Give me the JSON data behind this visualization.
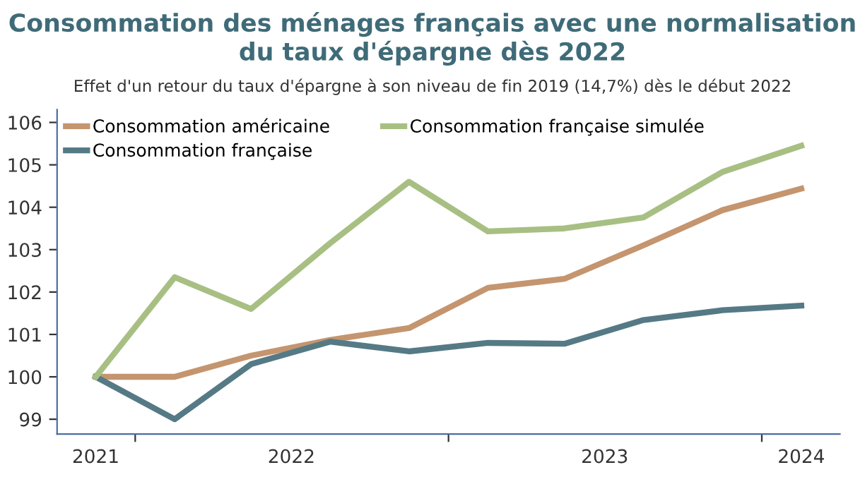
{
  "chart_data": {
    "type": "line",
    "title": "Consommation des ménages français avec une normalisation du taux d'épargne dès 2022",
    "subtitle": "Effet d'un retour du taux d'épargne à son niveau de fin 2019 (14,7%) dès le début 2022",
    "x": [
      "2021-11-15",
      "2022-02-15",
      "2022-05-15",
      "2022-08-15",
      "2022-11-15",
      "2023-02-15",
      "2023-05-15",
      "2023-08-15",
      "2023-11-15",
      "2024-02-15"
    ],
    "series": [
      {
        "name": "Consommation américaine",
        "color": "#c4956e",
        "values": [
          100,
          100,
          100.5,
          100.87,
          101.15,
          102.1,
          102.31,
          103.1,
          103.93,
          104.44
        ]
      },
      {
        "name": "Consommation française",
        "color": "#557a85",
        "values": [
          100,
          99,
          100.3,
          100.83,
          100.6,
          100.8,
          100.78,
          101.34,
          101.57,
          101.68
        ]
      },
      {
        "name": "Consommation française simulée",
        "color": "#a8bf83",
        "values": [
          100,
          102.35,
          101.6,
          103.15,
          104.6,
          103.43,
          103.5,
          103.76,
          104.83,
          105.45
        ]
      }
    ],
    "xlim": [
      "2021-10-01",
      "2024-03-31"
    ],
    "xticks": [
      {
        "value": "2021-11-15",
        "label": "2021"
      },
      {
        "value": "2021-12-31",
        "label": null
      },
      {
        "value": "2022-07-01",
        "label": "2022"
      },
      {
        "value": "2022-12-31",
        "label": null
      },
      {
        "value": "2023-07-01",
        "label": "2023"
      },
      {
        "value": "2023-12-31",
        "label": null
      },
      {
        "value": "2024-02-15",
        "label": "2024"
      }
    ],
    "ylim": [
      98.65,
      106.3
    ],
    "yticks": [
      99,
      100,
      101,
      102,
      103,
      104,
      105,
      106
    ],
    "grid": false,
    "legend": "top left",
    "marker": "none",
    "line_style": "solid"
  }
}
